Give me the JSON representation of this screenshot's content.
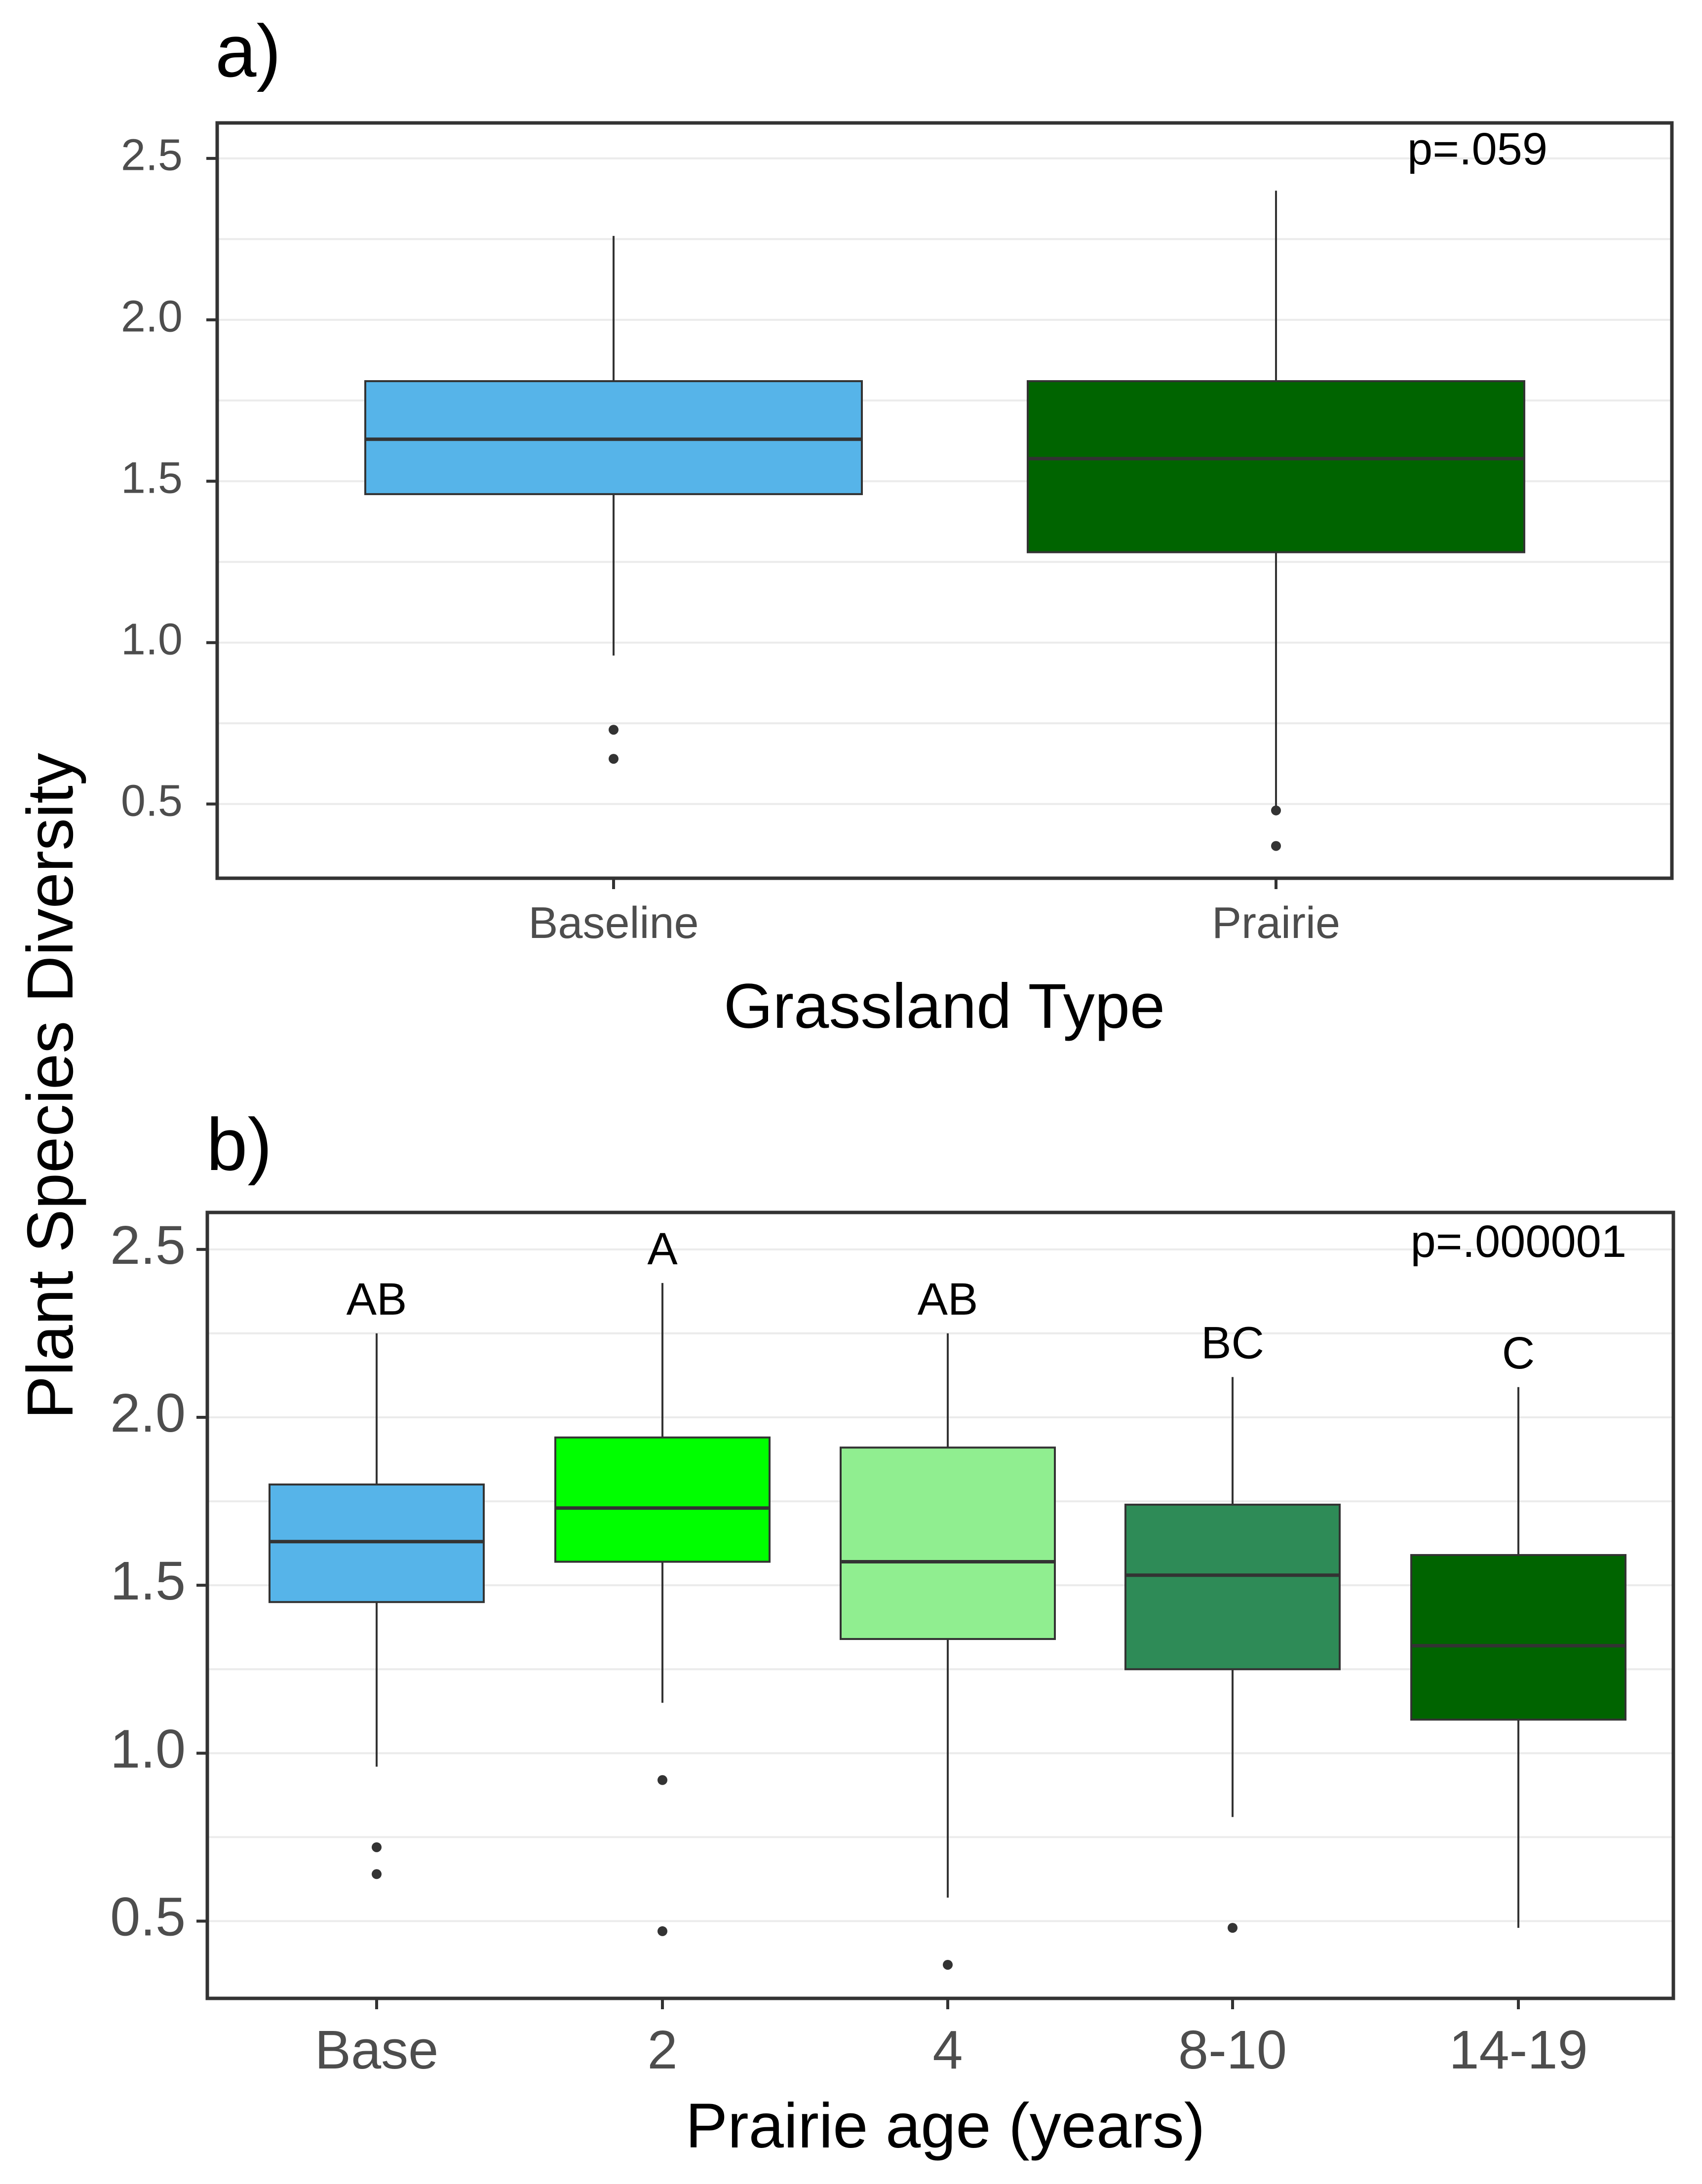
{
  "shared": {
    "ylabel": "Plant Species Diversity"
  },
  "colors": {
    "baseline_blue": "#56B4E9",
    "dark_green": "#006400",
    "bright_green": "#00FF00",
    "light_green": "#90EE90",
    "sea_green": "#2E8B57",
    "median_line": "#333333",
    "whisker": "#333333",
    "grid": "#EBEBEB",
    "axis_text": "#4D4D4D",
    "panel_border": "#333333"
  },
  "chart_data": [
    {
      "type": "boxplot",
      "panel_label": "a)",
      "xlabel": "Grassland Type",
      "ylabel": "Plant Species Diversity",
      "ylim": [
        0.27,
        2.61
      ],
      "yticks": [
        0.5,
        1.0,
        1.5,
        2.0,
        2.5
      ],
      "ytick_labels": [
        "0.5",
        "1.0",
        "1.5",
        "2.0",
        "2.5"
      ],
      "grid": true,
      "annotation": "p=.059",
      "annotation_position": "top-right",
      "categories": [
        "Baseline",
        "Prairie"
      ],
      "boxes": [
        {
          "category": "Baseline",
          "color": "#56B4E9",
          "whisker_low": 0.96,
          "q1": 1.46,
          "median": 1.63,
          "q3": 1.81,
          "whisker_high": 2.26,
          "outliers": [
            0.73,
            0.64
          ]
        },
        {
          "category": "Prairie",
          "color": "#006400",
          "whisker_low": 0.49,
          "q1": 1.28,
          "median": 1.57,
          "q3": 1.81,
          "whisker_high": 2.4,
          "outliers": [
            0.48,
            0.37
          ]
        }
      ]
    },
    {
      "type": "boxplot",
      "panel_label": "b)",
      "xlabel": "Prairie age (years)",
      "ylabel": "Plant Species Diversity",
      "ylim": [
        0.27,
        2.61
      ],
      "yticks": [
        0.5,
        1.0,
        1.5,
        2.0,
        2.5
      ],
      "ytick_labels": [
        "0.5",
        "1.0",
        "1.5",
        "2.0",
        "2.5"
      ],
      "grid": true,
      "annotation": "p=.000001",
      "annotation_position": "top-right",
      "categories": [
        "Base",
        "2",
        "4",
        "8-10",
        "14-19"
      ],
      "boxes": [
        {
          "category": "Base",
          "color": "#56B4E9",
          "whisker_low": 0.96,
          "q1": 1.45,
          "median": 1.63,
          "q3": 1.8,
          "whisker_high": 2.25,
          "outliers": [
            0.72,
            0.64
          ],
          "group_letter": "AB"
        },
        {
          "category": "2",
          "color": "#00FF00",
          "whisker_low": 1.15,
          "q1": 1.57,
          "median": 1.73,
          "q3": 1.94,
          "whisker_high": 2.4,
          "outliers": [
            0.92,
            0.47
          ],
          "group_letter": "A"
        },
        {
          "category": "4",
          "color": "#90EE90",
          "whisker_low": 0.57,
          "q1": 1.34,
          "median": 1.57,
          "q3": 1.91,
          "whisker_high": 2.25,
          "outliers": [
            0.37
          ],
          "group_letter": "AB"
        },
        {
          "category": "8-10",
          "color": "#2E8B57",
          "whisker_low": 0.81,
          "q1": 1.25,
          "median": 1.53,
          "q3": 1.74,
          "whisker_high": 2.12,
          "outliers": [
            0.48
          ],
          "group_letter": "BC"
        },
        {
          "category": "14-19",
          "color": "#006400",
          "whisker_low": 0.48,
          "q1": 1.1,
          "median": 1.32,
          "q3": 1.59,
          "whisker_high": 2.09,
          "outliers": [],
          "group_letter": "C"
        }
      ]
    }
  ]
}
